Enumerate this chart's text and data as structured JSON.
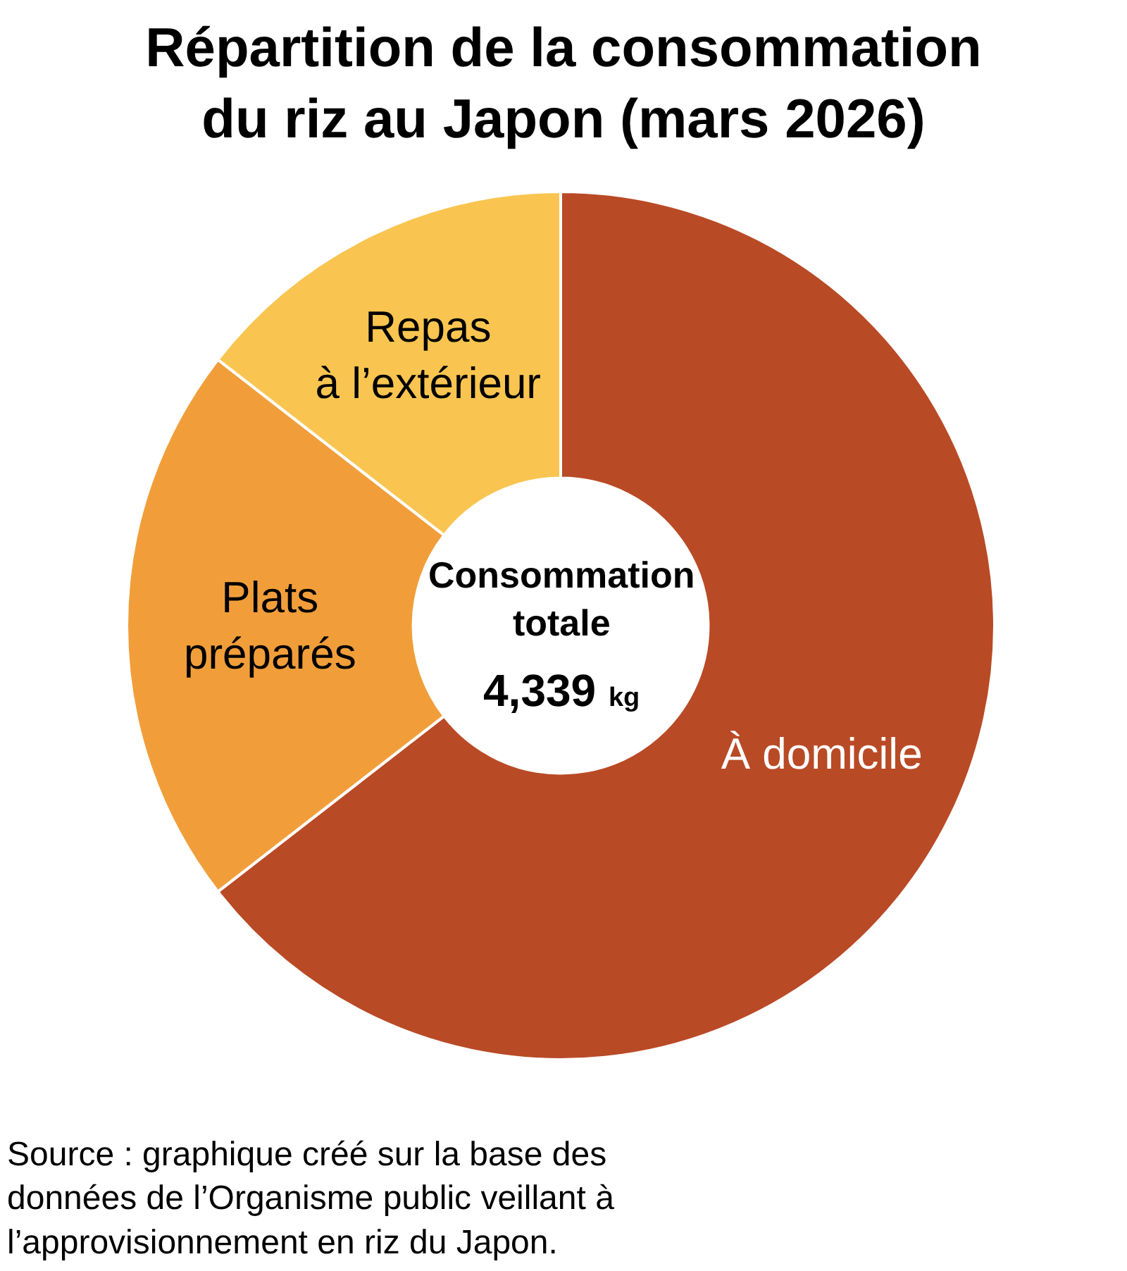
{
  "chart_data": {
    "type": "donut",
    "title": "Répartition de la consommation\ndu riz au Japon (mars 2026)",
    "categories": [
      "À domicile",
      "Plats\npréparés",
      "Repas\nà l’extérieur"
    ],
    "values": [
      64.5,
      21.0,
      14.5
    ],
    "colors": [
      "#b94a26",
      "#f19e3a",
      "#f9c550"
    ],
    "annotations": [
      "Consommation\ntotale",
      "4,339 kg",
      "Source : graphique créé sur la base des données de l’Organisme public veillant à l’approvisionnement en riz du Japon."
    ]
  }
}
